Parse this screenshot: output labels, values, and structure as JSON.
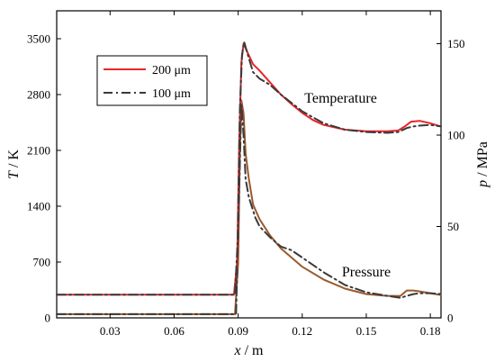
{
  "colors": {
    "red": "#e8262b",
    "dark": "#3a3a3a",
    "brown": "#9a5a2e",
    "axis": "#000000"
  },
  "chart_data": {
    "type": "line",
    "xlabel": {
      "var": "x",
      "unit": " / m"
    },
    "ylabel_left": {
      "var": "T",
      "unit": " / K"
    },
    "ylabel_right": {
      "var": "p",
      "unit": " / MPa"
    },
    "xlim": [
      0.005,
      0.185
    ],
    "ylim_left": [
      0,
      3850
    ],
    "ylim_right": [
      0,
      168
    ],
    "xticks": [
      0.03,
      0.06,
      0.09,
      0.12,
      0.15,
      0.18
    ],
    "xtick_labels": [
      "0.03",
      "0.06",
      "0.09",
      "0.12",
      "0.15",
      "0.18"
    ],
    "yticks_left": [
      0,
      700,
      1400,
      2100,
      2800,
      3500
    ],
    "ytick_labels_left": [
      "0",
      "700",
      "1400",
      "2100",
      "2800",
      "3500"
    ],
    "yticks_right": [
      0,
      50,
      100,
      150
    ],
    "ytick_labels_right": [
      "0",
      "50",
      "100",
      "150"
    ],
    "grid": false,
    "legend": {
      "position": "top-left",
      "entries": [
        {
          "name": "200 μm",
          "style": "solid",
          "color": "#e8262b"
        },
        {
          "name": "100 μm",
          "style": "dashdot",
          "color": "#3a3a3a"
        }
      ]
    },
    "annotations": [
      {
        "text": "Temperature",
        "x": 0.138,
        "y": 2700
      },
      {
        "text": "Pressure",
        "x": 0.15,
        "y": 520
      }
    ],
    "series": [
      {
        "name": "200 μm",
        "quantity": "Temperature",
        "axis": "left",
        "style": "solid",
        "color": "#e8262b",
        "x": [
          0.005,
          0.088,
          0.0895,
          0.0905,
          0.0915,
          0.0925,
          0.094,
          0.097,
          0.1,
          0.105,
          0.11,
          0.115,
          0.12,
          0.125,
          0.13,
          0.14,
          0.15,
          0.16,
          0.165,
          0.168,
          0.171,
          0.175,
          0.18,
          0.185
        ],
        "y": [
          290,
          290,
          700,
          2200,
          3200,
          3440,
          3350,
          3180,
          3100,
          2950,
          2800,
          2680,
          2570,
          2480,
          2420,
          2360,
          2340,
          2340,
          2350,
          2400,
          2460,
          2470,
          2440,
          2400
        ]
      },
      {
        "name": "100 μm",
        "quantity": "Temperature",
        "axis": "left",
        "style": "dashdot",
        "color": "#3a3a3a",
        "x": [
          0.005,
          0.0885,
          0.0898,
          0.0908,
          0.0918,
          0.0928,
          0.0945,
          0.097,
          0.1,
          0.105,
          0.11,
          0.12,
          0.13,
          0.14,
          0.15,
          0.16,
          0.165,
          0.169,
          0.172,
          0.175,
          0.18,
          0.185
        ],
        "y": [
          290,
          290,
          1000,
          2600,
          3300,
          3460,
          3300,
          3080,
          3000,
          2920,
          2800,
          2590,
          2440,
          2360,
          2330,
          2320,
          2330,
          2380,
          2400,
          2410,
          2420,
          2400
        ]
      },
      {
        "name": "200 μm",
        "quantity": "Pressure",
        "axis": "right",
        "style": "solid",
        "color": "#9a5a2e",
        "x": [
          0.005,
          0.0885,
          0.09,
          0.0908,
          0.0915,
          0.0925,
          0.0935,
          0.095,
          0.097,
          0.1,
          0.105,
          0.11,
          0.115,
          0.12,
          0.13,
          0.14,
          0.15,
          0.16,
          0.166,
          0.169,
          0.172,
          0.175,
          0.18,
          0.185
        ],
        "y": [
          2,
          2,
          30,
          90,
          119,
          112,
          90,
          76,
          62,
          54,
          45,
          38,
          33,
          28,
          21,
          16,
          13,
          12,
          12,
          15,
          15,
          14.5,
          13.5,
          12.5
        ]
      },
      {
        "name": "100 μm",
        "quantity": "Pressure",
        "axis": "right",
        "style": "dashdot",
        "color": "#3a3a3a",
        "x": [
          0.005,
          0.089,
          0.0905,
          0.0915,
          0.0925,
          0.0935,
          0.095,
          0.098,
          0.1,
          0.105,
          0.11,
          0.115,
          0.12,
          0.13,
          0.14,
          0.15,
          0.16,
          0.166,
          0.169,
          0.172,
          0.175,
          0.18,
          0.185
        ],
        "y": [
          2,
          2,
          70,
          117,
          100,
          76,
          66,
          55,
          50,
          44,
          39,
          37,
          33,
          25,
          18,
          14,
          12,
          11,
          12,
          13,
          13.5,
          13.5,
          13
        ]
      }
    ]
  }
}
